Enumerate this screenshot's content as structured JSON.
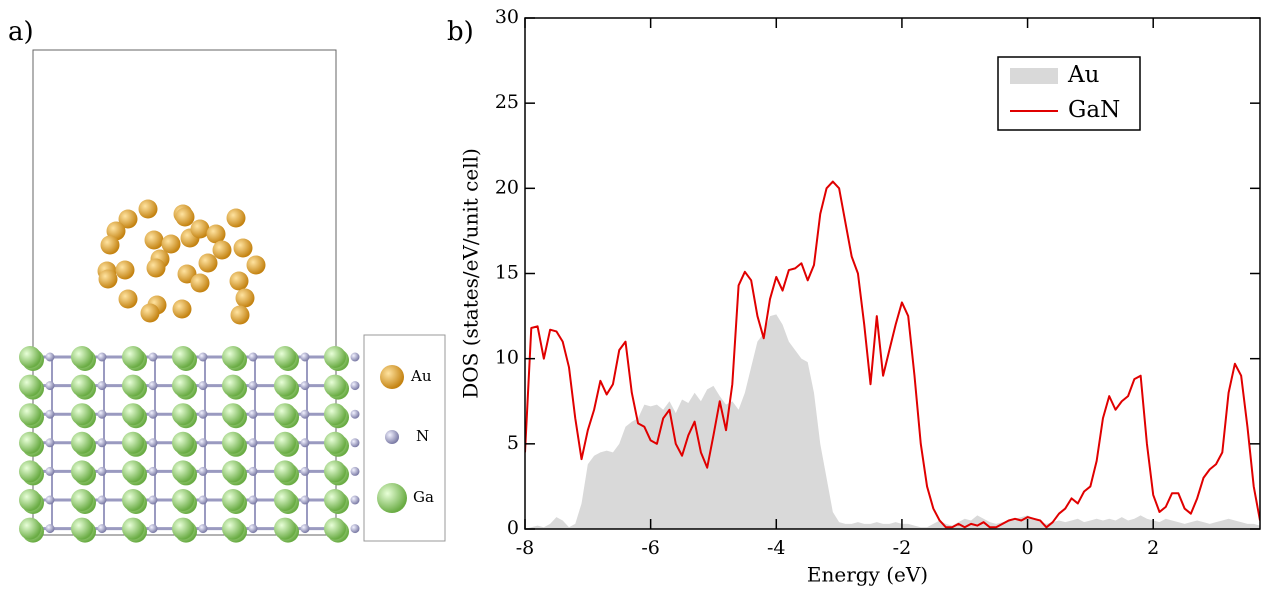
{
  "panel_a": {
    "label": "a)",
    "legend": [
      "Au",
      "N",
      "Ga"
    ]
  },
  "chart_data": {
    "type": "line",
    "panel_label": "b)",
    "x_label": "Energy (eV)",
    "y_label": "DOS (states/eV/unit cell)",
    "xlim": [
      -8,
      3.7
    ],
    "ylim": [
      0,
      30
    ],
    "xticks": [
      -8,
      -6,
      -4,
      -2,
      0,
      2
    ],
    "yticks": [
      0,
      5,
      10,
      15,
      20,
      25,
      30
    ],
    "legend_position": "upper right",
    "x": [
      -8.0,
      -7.9,
      -7.8,
      -7.7,
      -7.6,
      -7.5,
      -7.4,
      -7.3,
      -7.2,
      -7.1,
      -7.0,
      -6.9,
      -6.8,
      -6.7,
      -6.6,
      -6.5,
      -6.4,
      -6.3,
      -6.2,
      -6.1,
      -6.0,
      -5.9,
      -5.8,
      -5.7,
      -5.6,
      -5.5,
      -5.4,
      -5.3,
      -5.2,
      -5.1,
      -5.0,
      -4.9,
      -4.8,
      -4.7,
      -4.6,
      -4.5,
      -4.4,
      -4.3,
      -4.2,
      -4.1,
      -4.0,
      -3.9,
      -3.8,
      -3.7,
      -3.6,
      -3.5,
      -3.4,
      -3.3,
      -3.2,
      -3.1,
      -3.0,
      -2.9,
      -2.8,
      -2.7,
      -2.6,
      -2.5,
      -2.4,
      -2.3,
      -2.2,
      -2.1,
      -2.0,
      -1.9,
      -1.8,
      -1.7,
      -1.6,
      -1.5,
      -1.4,
      -1.3,
      -1.2,
      -1.1,
      -1.0,
      -0.9,
      -0.8,
      -0.7,
      -0.6,
      -0.5,
      -0.4,
      -0.3,
      -0.2,
      -0.1,
      0.0,
      0.1,
      0.2,
      0.3,
      0.4,
      0.5,
      0.6,
      0.7,
      0.8,
      0.9,
      1.0,
      1.1,
      1.2,
      1.3,
      1.4,
      1.5,
      1.6,
      1.7,
      1.8,
      1.9,
      2.0,
      2.1,
      2.2,
      2.3,
      2.4,
      2.5,
      2.6,
      2.7,
      2.8,
      2.9,
      3.0,
      3.1,
      3.2,
      3.3,
      3.4,
      3.5,
      3.6,
      3.7
    ],
    "series": [
      {
        "name": "Au",
        "style": "area",
        "color": "#d9d9d9",
        "values": [
          0,
          0.1,
          0.2,
          0.1,
          0.3,
          0.7,
          0.5,
          0.1,
          0.3,
          1.5,
          3.8,
          4.3,
          4.5,
          4.6,
          4.5,
          5.0,
          6.0,
          6.3,
          6.5,
          7.3,
          7.2,
          7.3,
          7.0,
          7.5,
          6.8,
          7.6,
          7.4,
          8.0,
          7.5,
          8.2,
          8.4,
          7.8,
          7.3,
          7.5,
          7.0,
          8.0,
          9.5,
          11.0,
          11.5,
          12.5,
          12.6,
          12.0,
          11.0,
          10.5,
          10.0,
          9.8,
          8.0,
          5.0,
          3.0,
          1.0,
          0.4,
          0.3,
          0.3,
          0.4,
          0.3,
          0.3,
          0.4,
          0.3,
          0.3,
          0.4,
          0.3,
          0.3,
          0.2,
          0.1,
          0.1,
          0.3,
          0.5,
          0.3,
          0.2,
          0.4,
          0.6,
          0.5,
          0.8,
          0.6,
          0.4,
          0.3,
          0.4,
          0.5,
          0.6,
          0.7,
          0.8,
          0.6,
          0.4,
          0.3,
          0.4,
          0.5,
          0.4,
          0.5,
          0.6,
          0.4,
          0.5,
          0.6,
          0.5,
          0.6,
          0.5,
          0.7,
          0.5,
          0.6,
          0.8,
          0.6,
          0.5,
          0.4,
          0.6,
          0.5,
          0.4,
          0.3,
          0.4,
          0.5,
          0.4,
          0.3,
          0.4,
          0.5,
          0.6,
          0.5,
          0.4,
          0.3,
          0.3,
          0.2
        ]
      },
      {
        "name": "GaN",
        "style": "line",
        "color": "#e00000",
        "values": [
          4.5,
          11.8,
          11.9,
          10.0,
          11.7,
          11.6,
          11.0,
          9.5,
          6.5,
          4.1,
          5.8,
          7.0,
          8.7,
          7.9,
          8.5,
          10.5,
          11.0,
          8.0,
          6.2,
          6.0,
          5.2,
          5.0,
          6.5,
          7.0,
          5.0,
          4.3,
          5.5,
          6.3,
          4.5,
          3.6,
          5.5,
          7.5,
          5.8,
          8.5,
          14.3,
          15.1,
          14.6,
          12.5,
          11.2,
          13.5,
          14.8,
          14.0,
          15.2,
          15.3,
          15.6,
          14.6,
          15.5,
          18.5,
          20.0,
          20.4,
          20.0,
          18.0,
          16.0,
          15.0,
          12.0,
          8.5,
          12.5,
          9.0,
          10.5,
          12.0,
          13.3,
          12.5,
          9.0,
          5.0,
          2.5,
          1.2,
          0.5,
          0.1,
          0.1,
          0.3,
          0.1,
          0.3,
          0.2,
          0.4,
          0.1,
          0.1,
          0.3,
          0.5,
          0.6,
          0.5,
          0.7,
          0.6,
          0.5,
          0.1,
          0.4,
          0.9,
          1.2,
          1.8,
          1.5,
          2.2,
          2.5,
          4.0,
          6.5,
          7.8,
          7.0,
          7.5,
          7.8,
          8.8,
          9.0,
          5.0,
          2.0,
          1.0,
          1.3,
          2.1,
          2.1,
          1.2,
          0.9,
          1.8,
          3.0,
          3.5,
          3.8,
          4.5,
          8.0,
          9.7,
          9.0,
          6.0,
          2.5,
          0.5
        ]
      }
    ]
  }
}
